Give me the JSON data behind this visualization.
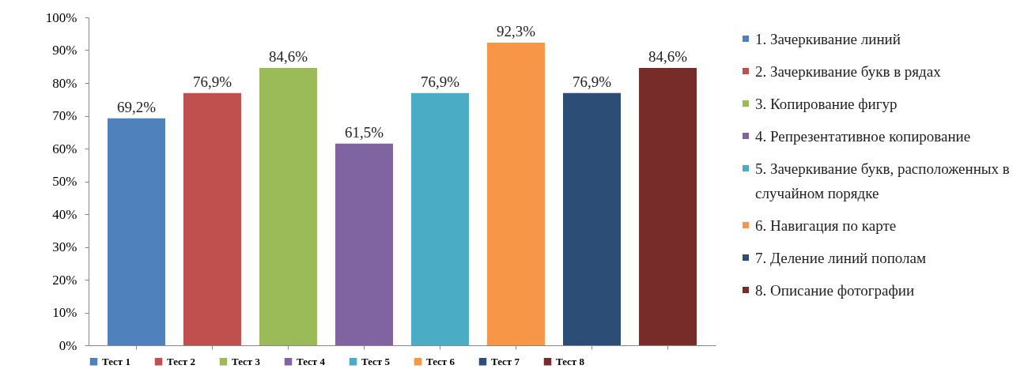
{
  "chart_data": {
    "type": "bar",
    "categories": [
      null,
      null,
      null,
      null,
      null,
      null,
      null,
      null
    ],
    "series": [
      {
        "name": "Тест 1",
        "color": "#4f81bd",
        "values": [
          69.2,
          null,
          null,
          null,
          null,
          null,
          null,
          null
        ],
        "value_labels": [
          "69,2%",
          null,
          null,
          null,
          null,
          null,
          null,
          null
        ]
      },
      {
        "name": "Тест 2",
        "color": "#c0504d",
        "values": [
          null,
          76.9,
          null,
          null,
          null,
          null,
          null,
          null
        ],
        "value_labels": [
          null,
          "76,9%",
          null,
          null,
          null,
          null,
          null,
          null
        ]
      },
      {
        "name": "Тест 3",
        "color": "#9bbb59",
        "values": [
          null,
          null,
          84.6,
          null,
          null,
          null,
          null,
          null
        ],
        "value_labels": [
          null,
          null,
          "84,6%",
          null,
          null,
          null,
          null,
          null
        ]
      },
      {
        "name": "Тест 4",
        "color": "#8064a2",
        "values": [
          null,
          null,
          null,
          61.5,
          null,
          null,
          null,
          null
        ],
        "value_labels": [
          null,
          null,
          null,
          "61,5%",
          null,
          null,
          null,
          null
        ]
      },
      {
        "name": "Тест 5",
        "color": "#4bacc6",
        "values": [
          null,
          null,
          null,
          null,
          76.9,
          null,
          null,
          null
        ],
        "value_labels": [
          null,
          null,
          null,
          null,
          "76,9%",
          null,
          null,
          null
        ]
      },
      {
        "name": "Тест 6",
        "color": "#f79646",
        "values": [
          null,
          null,
          null,
          null,
          null,
          92.3,
          null,
          null
        ],
        "value_labels": [
          null,
          null,
          null,
          null,
          null,
          "92,3%",
          null,
          null
        ]
      },
      {
        "name": "Тест 7",
        "color": "#2c4d75",
        "values": [
          null,
          null,
          null,
          null,
          null,
          null,
          76.9,
          null
        ],
        "value_labels": [
          null,
          null,
          null,
          null,
          null,
          null,
          "76,9%",
          null
        ]
      },
      {
        "name": "Тест 8",
        "color": "#772c2a",
        "values": [
          null,
          null,
          null,
          null,
          null,
          null,
          null,
          84.6
        ],
        "value_labels": [
          null,
          null,
          null,
          null,
          null,
          null,
          null,
          "84,6%"
        ]
      }
    ],
    "ylim": [
      0,
      100
    ],
    "yticks": [
      {
        "value": 0,
        "label": "0%"
      },
      {
        "value": 10,
        "label": "10%"
      },
      {
        "value": 20,
        "label": "20%"
      },
      {
        "value": 30,
        "label": "30%"
      },
      {
        "value": 40,
        "label": "40%"
      },
      {
        "value": 50,
        "label": "50%"
      },
      {
        "value": 60,
        "label": "60%"
      },
      {
        "value": 70,
        "label": "70%"
      },
      {
        "value": 80,
        "label": "80%"
      },
      {
        "value": 90,
        "label": "90%"
      },
      {
        "value": 100,
        "label": "100%"
      }
    ],
    "tick_labels": "y",
    "legend": "bottom",
    "annotations": [
      "1. Зачеркивание линий",
      "2. Зачеркивание букв в рядах",
      "3. Копирование фигур",
      "4. Репрезентативное копирование",
      "5. Зачеркивание букв, расположенных в случайном порядке",
      "6. Навигация по карте",
      "7. Деление линий пополам",
      "8. Описание фотографии"
    ]
  }
}
